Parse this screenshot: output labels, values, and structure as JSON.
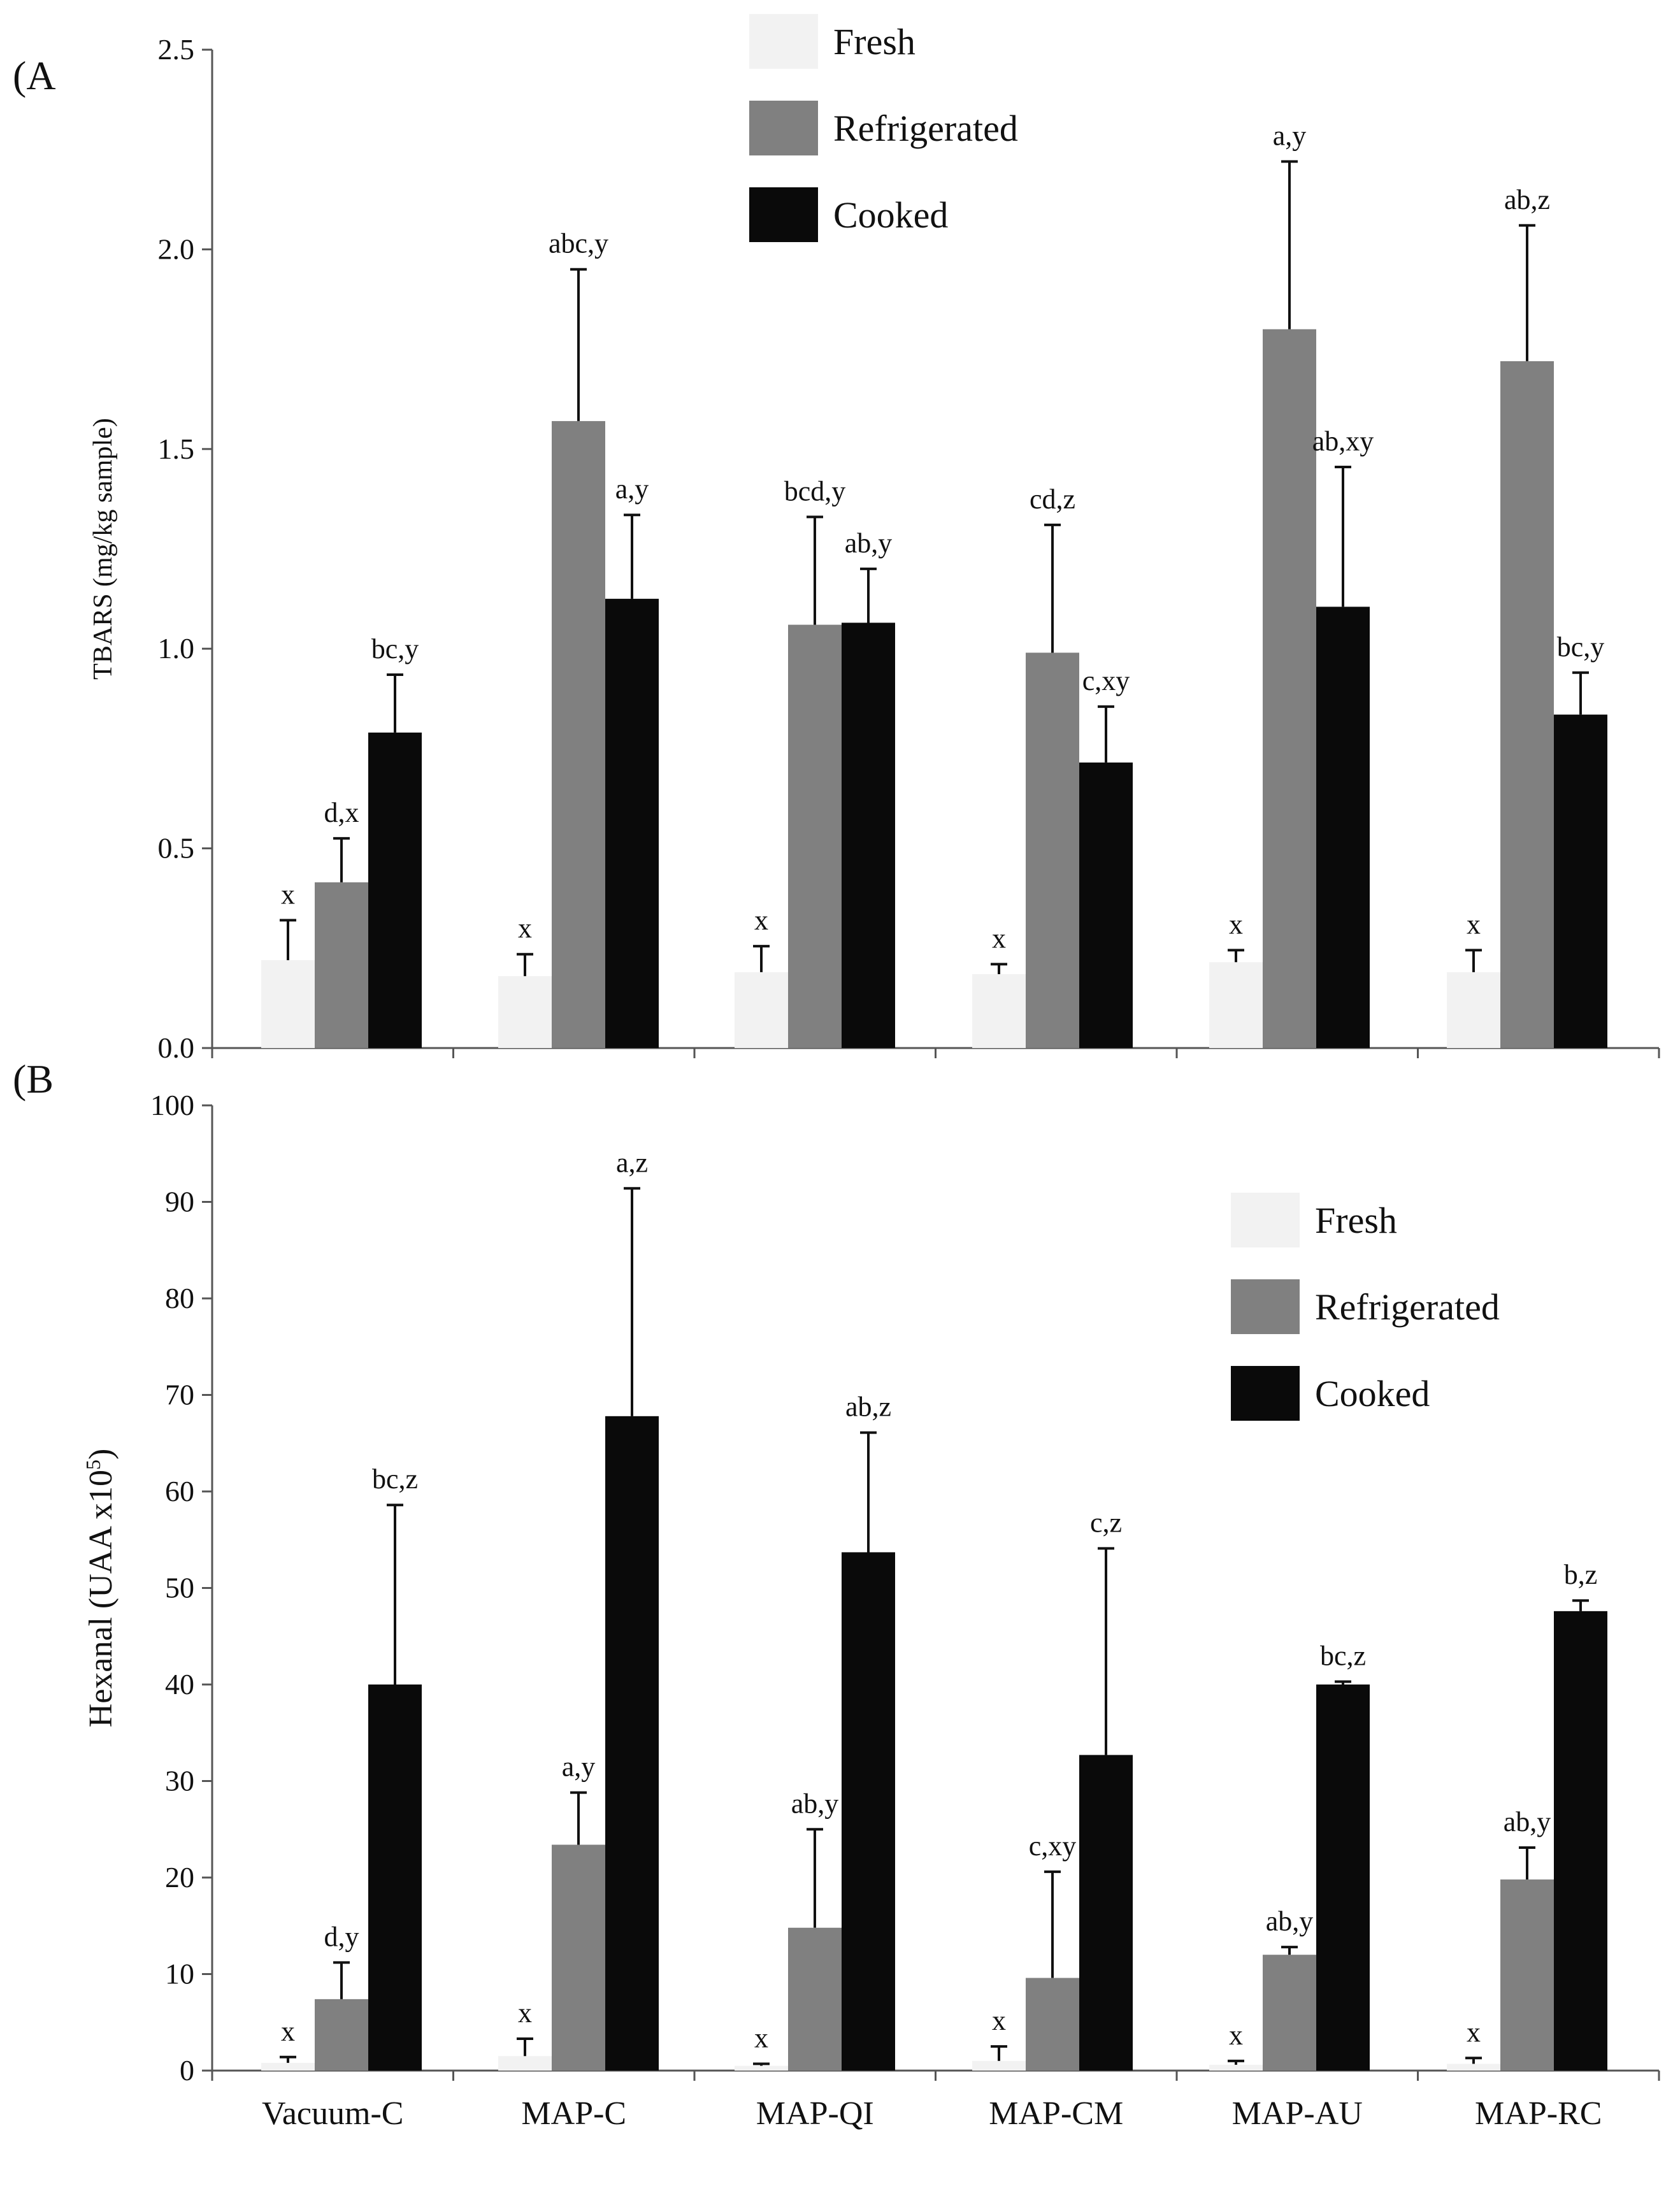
{
  "colors": {
    "fresh": "#f2f2f2",
    "refrigerated": "#808080",
    "cooked": "#0a0a0a",
    "axis": "#555555",
    "text": "#111111"
  },
  "chart_data": [
    {
      "type": "bar",
      "panel_label": "(A",
      "ylabel": "TBARS (mg/kg sample)",
      "ylim": [
        0,
        2.5
      ],
      "yticks": [
        "0.0",
        "0.5",
        "1.0",
        "1.5",
        "2.0",
        "2.5"
      ],
      "categories": [
        "Vacuum-C",
        "MAP-C",
        "MAP-QI",
        "MAP-CM",
        "MAP-AU",
        "MAP-RC"
      ],
      "show_xtick_labels": false,
      "legend_position": "top-center",
      "series": [
        {
          "name": "Fresh",
          "key": "fresh",
          "values": [
            0.22,
            0.18,
            0.19,
            0.185,
            0.215,
            0.19
          ],
          "errors": [
            0.1,
            0.055,
            0.065,
            0.025,
            0.03,
            0.055
          ],
          "labels": [
            "x",
            "x",
            "x",
            "x",
            "x",
            "x"
          ]
        },
        {
          "name": "Refrigerated",
          "key": "refrigerated",
          "values": [
            0.415,
            1.57,
            1.06,
            0.99,
            1.8,
            1.72
          ],
          "errors": [
            0.11,
            0.38,
            0.27,
            0.32,
            0.42,
            0.34
          ],
          "labels": [
            "d,x",
            "abc,y",
            "bcd,y",
            "cd,z",
            "a,y",
            "ab,z"
          ]
        },
        {
          "name": "Cooked",
          "key": "cooked",
          "values": [
            0.79,
            1.125,
            1.065,
            0.715,
            1.105,
            0.835
          ],
          "errors": [
            0.145,
            0.21,
            0.135,
            0.14,
            0.35,
            0.105
          ],
          "labels": [
            "bc,y",
            "a,y",
            "ab,y",
            "c,xy",
            "ab,xy",
            "bc,y"
          ]
        }
      ]
    },
    {
      "type": "bar",
      "panel_label": "(B",
      "ylabel": "Hexanal  (UAA x10",
      "ylabel_sup": "5",
      "ylabel_close": ")",
      "ylim": [
        0,
        100
      ],
      "yticks": [
        "0",
        "10",
        "20",
        "30",
        "40",
        "50",
        "60",
        "70",
        "80",
        "90",
        "100"
      ],
      "categories": [
        "Vacuum-C",
        "MAP-C",
        "MAP-QI",
        "MAP-CM",
        "MAP-AU",
        "MAP-RC"
      ],
      "show_xtick_labels": true,
      "legend_position": "top-right",
      "series": [
        {
          "name": "Fresh",
          "key": "fresh",
          "values": [
            0.8,
            1.5,
            0.5,
            1.0,
            0.6,
            0.7
          ],
          "errors": [
            0.6,
            1.8,
            0.2,
            1.5,
            0.4,
            0.6
          ],
          "labels": [
            "x",
            "x",
            "x",
            "x",
            "x",
            "x"
          ]
        },
        {
          "name": "Refrigerated",
          "key": "refrigerated",
          "values": [
            7.4,
            23.4,
            14.8,
            9.6,
            12.0,
            19.8
          ],
          "errors": [
            3.8,
            5.4,
            10.2,
            11.0,
            0.8,
            3.3
          ],
          "labels": [
            "d,y",
            "a,y",
            "ab,y",
            "c,xy",
            "ab,y",
            "ab,y"
          ]
        },
        {
          "name": "Cooked",
          "key": "cooked",
          "values": [
            40.0,
            67.8,
            53.7,
            32.7,
            40.0,
            47.6
          ],
          "errors": [
            18.6,
            23.6,
            12.4,
            21.4,
            0.3,
            1.1
          ],
          "labels": [
            "bc,z",
            "a,z",
            "ab,z",
            "c,z",
            "bc,z",
            "b,z"
          ]
        }
      ]
    }
  ]
}
